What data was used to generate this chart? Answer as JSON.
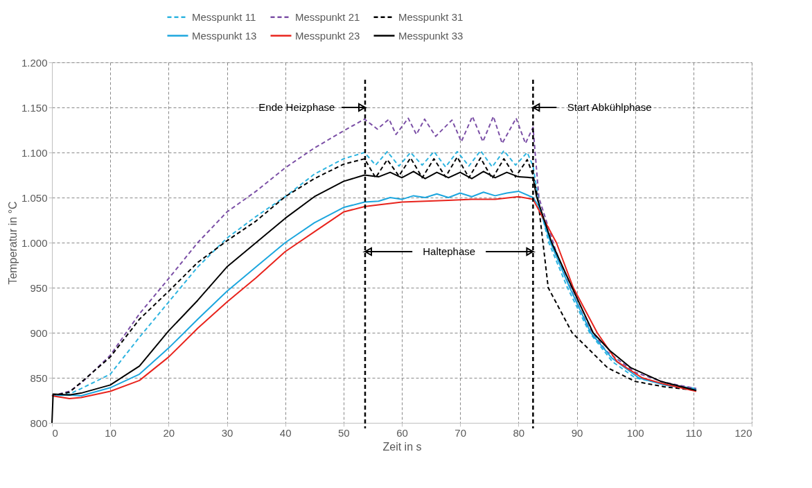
{
  "chart_data": {
    "type": "line",
    "xlabel": "Zeit in s",
    "ylabel": "Temperatur in °C",
    "xlim": [
      0,
      120
    ],
    "xticks": [
      0,
      10,
      20,
      30,
      40,
      50,
      60,
      70,
      80,
      90,
      100,
      110,
      120
    ],
    "ylim": [
      800,
      1200
    ],
    "yticks": [
      800,
      850,
      900,
      950,
      {
        "value": 1000,
        "label": "1.000"
      },
      {
        "value": 1050,
        "label": "1.050"
      },
      {
        "value": 1100,
        "label": "1.100"
      },
      {
        "value": 1150,
        "label": "1.150"
      },
      {
        "value": 1200,
        "label": "1.200"
      }
    ],
    "grid": true,
    "legend": "top",
    "marker": "none",
    "series": [
      {
        "name": "Messpunkt 11",
        "color": "#2db4e0",
        "line_style": "dashed",
        "x": [
          0,
          3,
          5,
          10,
          15,
          20,
          25,
          30,
          35,
          40,
          45,
          50,
          53.6,
          55.5,
          57.5,
          59.5,
          61.5,
          63.5,
          65.5,
          67.5,
          69.5,
          71.5,
          73.5,
          75.5,
          77.5,
          79.5,
          81.5,
          82.5,
          83.5,
          85.2,
          88.4,
          92.2,
          96.1,
          100,
          105,
          110.5
        ],
        "values": [
          830,
          832,
          838,
          854,
          895,
          934,
          973,
          1005,
          1029,
          1051,
          1076,
          1093,
          1100,
          1086,
          1101,
          1085,
          1100,
          1086,
          1101,
          1084,
          1101,
          1085,
          1102,
          1084,
          1102,
          1086,
          1100,
          1085,
          1045,
          1000,
          950,
          900,
          868,
          850,
          843,
          838
        ]
      },
      {
        "name": "Messpunkt 21",
        "color": "#7b4fa6",
        "line_style": "dashed",
        "x": [
          0,
          3,
          5,
          10,
          15,
          20,
          25,
          30,
          35,
          40,
          45,
          50,
          53.6,
          55.8,
          57.8,
          59,
          61.1,
          62.5,
          63.9,
          65.8,
          68.6,
          70.2,
          72.1,
          73.9,
          75.7,
          77.2,
          79.6,
          81.2,
          82.5,
          83.5,
          86.3,
          88,
          90,
          92,
          95,
          100,
          105,
          110.5
        ],
        "values": [
          830,
          835,
          844,
          875,
          921,
          960,
          1000,
          1034,
          1057,
          1083,
          1105,
          1124,
          1137,
          1126,
          1137,
          1120,
          1138,
          1120,
          1137,
          1118,
          1136,
          1112,
          1140,
          1112,
          1140,
          1110,
          1138,
          1110,
          1128,
          1050,
          993,
          963,
          934,
          907,
          880,
          856,
          845,
          838
        ]
      },
      {
        "name": "Messpunkt 31",
        "color": "#000000",
        "line_style": "dashed",
        "x": [
          0,
          3,
          5,
          10,
          15,
          20,
          25,
          30,
          35,
          40,
          45,
          50,
          53.6,
          55.5,
          57.5,
          59.5,
          61.5,
          63.5,
          65.5,
          67.5,
          69.5,
          71.5,
          73.5,
          75.5,
          77.5,
          79.5,
          81.5,
          82.5,
          83.3,
          85.1,
          89.2,
          95.3,
          100,
          105,
          110.5
        ],
        "values": [
          830,
          834,
          845,
          873,
          915,
          946,
          978,
          1002,
          1024,
          1051,
          1071,
          1087,
          1093,
          1072,
          1092,
          1074,
          1094,
          1072,
          1093,
          1073,
          1095,
          1072,
          1094,
          1071,
          1093,
          1073,
          1092,
          1075,
          1050,
          950,
          900,
          861,
          846,
          840,
          836
        ]
      },
      {
        "name": "Messpunkt 13",
        "color": "#1ca6de",
        "line_style": "solid",
        "x": [
          0,
          3,
          5,
          10,
          15,
          20,
          25,
          30,
          35,
          40,
          45,
          50,
          53.6,
          56,
          58,
          60,
          62,
          64,
          66,
          68,
          70,
          72,
          74,
          76,
          78,
          80,
          82.5,
          83.5,
          85.5,
          88.8,
          92.4,
          96,
          100.6,
          105,
          110.5
        ],
        "values": [
          830,
          831,
          830,
          839,
          854,
          883,
          915,
          946,
          973,
          1000,
          1022,
          1039,
          1045,
          1046,
          1050,
          1048,
          1052,
          1050,
          1054,
          1050,
          1055,
          1051,
          1056,
          1052,
          1055,
          1057,
          1050,
          1040,
          1000,
          950,
          900,
          872,
          850,
          842,
          837
        ]
      },
      {
        "name": "Messpunkt 23",
        "color": "#e8231c",
        "line_style": "solid",
        "x": [
          0,
          3,
          5,
          10,
          15,
          20,
          25,
          30,
          35,
          40,
          45,
          50,
          53.6,
          56,
          60,
          64,
          68,
          72,
          76,
          80,
          82.5,
          84,
          86.5,
          89.4,
          93.5,
          96.9,
          101.2,
          105,
          110.5
        ],
        "values": [
          830,
          827,
          828,
          835,
          847,
          873,
          905,
          934,
          961,
          990,
          1012,
          1034,
          1040,
          1042,
          1045,
          1046,
          1047,
          1048,
          1048,
          1051,
          1048,
          1030,
          1000,
          950,
          900,
          868,
          850,
          843,
          835
        ]
      },
      {
        "name": "Messpunkt 33",
        "color": "#000000",
        "line_style": "solid",
        "x": [
          0,
          0.2,
          3,
          5,
          10,
          15,
          20,
          25,
          30,
          35,
          40,
          45,
          50,
          53.6,
          56,
          58,
          60,
          62,
          64,
          66,
          68,
          70,
          72,
          74,
          76,
          78,
          80,
          82.5,
          83.1,
          85.7,
          89.2,
          92.8,
          95.7,
          99.3,
          104.4,
          110.5
        ],
        "values": [
          800,
          832,
          831,
          833,
          842,
          863,
          902,
          936,
          973,
          1000,
          1027,
          1051,
          1068,
          1075,
          1073,
          1078,
          1072,
          1079,
          1071,
          1078,
          1072,
          1078,
          1071,
          1079,
          1072,
          1078,
          1073,
          1072,
          1051,
          1000,
          950,
          900,
          880,
          861,
          846,
          836
        ]
      }
    ],
    "ref_lines": [
      {
        "axis": "x",
        "value": 53.7,
        "color": "#000000",
        "line_style": "dashed",
        "label": "Ende Heizphase"
      },
      {
        "axis": "x",
        "value": 82.5,
        "color": "#000000",
        "line_style": "dashed",
        "label": "Start Abkühlphase"
      }
    ],
    "annotations": [
      {
        "text": "Haltephase",
        "x": 53.7,
        "y": 990
      }
    ]
  }
}
